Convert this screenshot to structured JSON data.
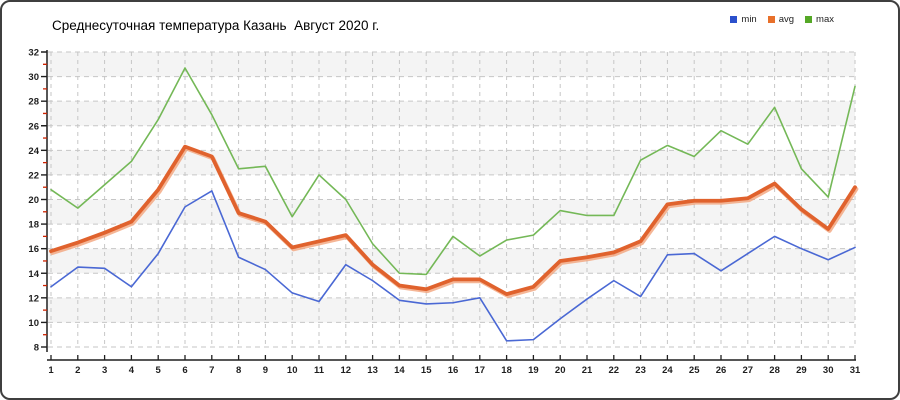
{
  "chart_data": {
    "type": "line",
    "title": "Среднесуточная температура Казань  Август 2020 г.",
    "xlabel": "",
    "ylabel": "",
    "x": [
      1,
      2,
      3,
      4,
      5,
      6,
      7,
      8,
      9,
      10,
      11,
      12,
      13,
      14,
      15,
      16,
      17,
      18,
      19,
      20,
      21,
      22,
      23,
      24,
      25,
      26,
      27,
      28,
      29,
      30,
      31
    ],
    "x_tick_labels": [
      "1",
      "2",
      "3",
      "4",
      "5",
      "6",
      "7",
      "8",
      "9",
      "10",
      "11",
      "12",
      "13",
      "14",
      "15",
      "16",
      "17",
      "18",
      "19",
      "20",
      "21",
      "22",
      "23",
      "24",
      "25",
      "26",
      "27",
      "28",
      "29",
      "30",
      "31"
    ],
    "ylim": [
      8,
      32
    ],
    "y_tick_step": 2,
    "y_minor_tick_step": 1,
    "grid": "dashed-both",
    "band_fill": "alternating",
    "legend_position": "top-right",
    "series": [
      {
        "name": "min",
        "color": "#4a68d4",
        "legend_color": "#2b50cc",
        "line_width": 1.6,
        "values": [
          12.9,
          14.5,
          14.4,
          12.9,
          15.6,
          19.4,
          20.7,
          15.3,
          14.3,
          12.4,
          11.7,
          14.7,
          13.4,
          11.8,
          11.5,
          11.6,
          12.0,
          8.5,
          8.6,
          10.3,
          11.9,
          13.4,
          12.1,
          15.5,
          15.6,
          14.2,
          15.6,
          17.0,
          16.0,
          15.1,
          16.1
        ]
      },
      {
        "name": "avg",
        "color": "#e0622d",
        "legend_color": "#e8702a",
        "line_width": 3.8,
        "values": [
          15.8,
          16.5,
          17.3,
          18.2,
          20.8,
          24.3,
          23.5,
          18.9,
          18.2,
          16.1,
          16.6,
          17.1,
          14.7,
          13.0,
          12.7,
          13.5,
          13.5,
          12.3,
          12.9,
          15.0,
          15.3,
          15.7,
          16.6,
          19.6,
          19.9,
          19.9,
          20.1,
          21.3,
          19.2,
          17.6,
          21.0
        ]
      },
      {
        "name": "max",
        "color": "#74b857",
        "legend_color": "#55a826",
        "line_width": 1.6,
        "values": [
          20.8,
          19.3,
          21.2,
          23.1,
          26.5,
          30.7,
          26.9,
          22.5,
          22.7,
          18.6,
          22.0,
          20.0,
          16.4,
          14.0,
          13.9,
          17.0,
          15.4,
          16.7,
          17.1,
          19.1,
          18.7,
          18.7,
          23.2,
          24.4,
          23.5,
          25.6,
          24.5,
          27.5,
          22.5,
          20.2,
          29.2
        ]
      }
    ],
    "colors": {
      "axis": "#1f1f1f",
      "grid": "#c6c6c6",
      "band": "#f4f4f4",
      "minor_tick": "#cc2200",
      "tick_label": "#1f1f1f",
      "avg_halo": "#f2a47c"
    }
  }
}
